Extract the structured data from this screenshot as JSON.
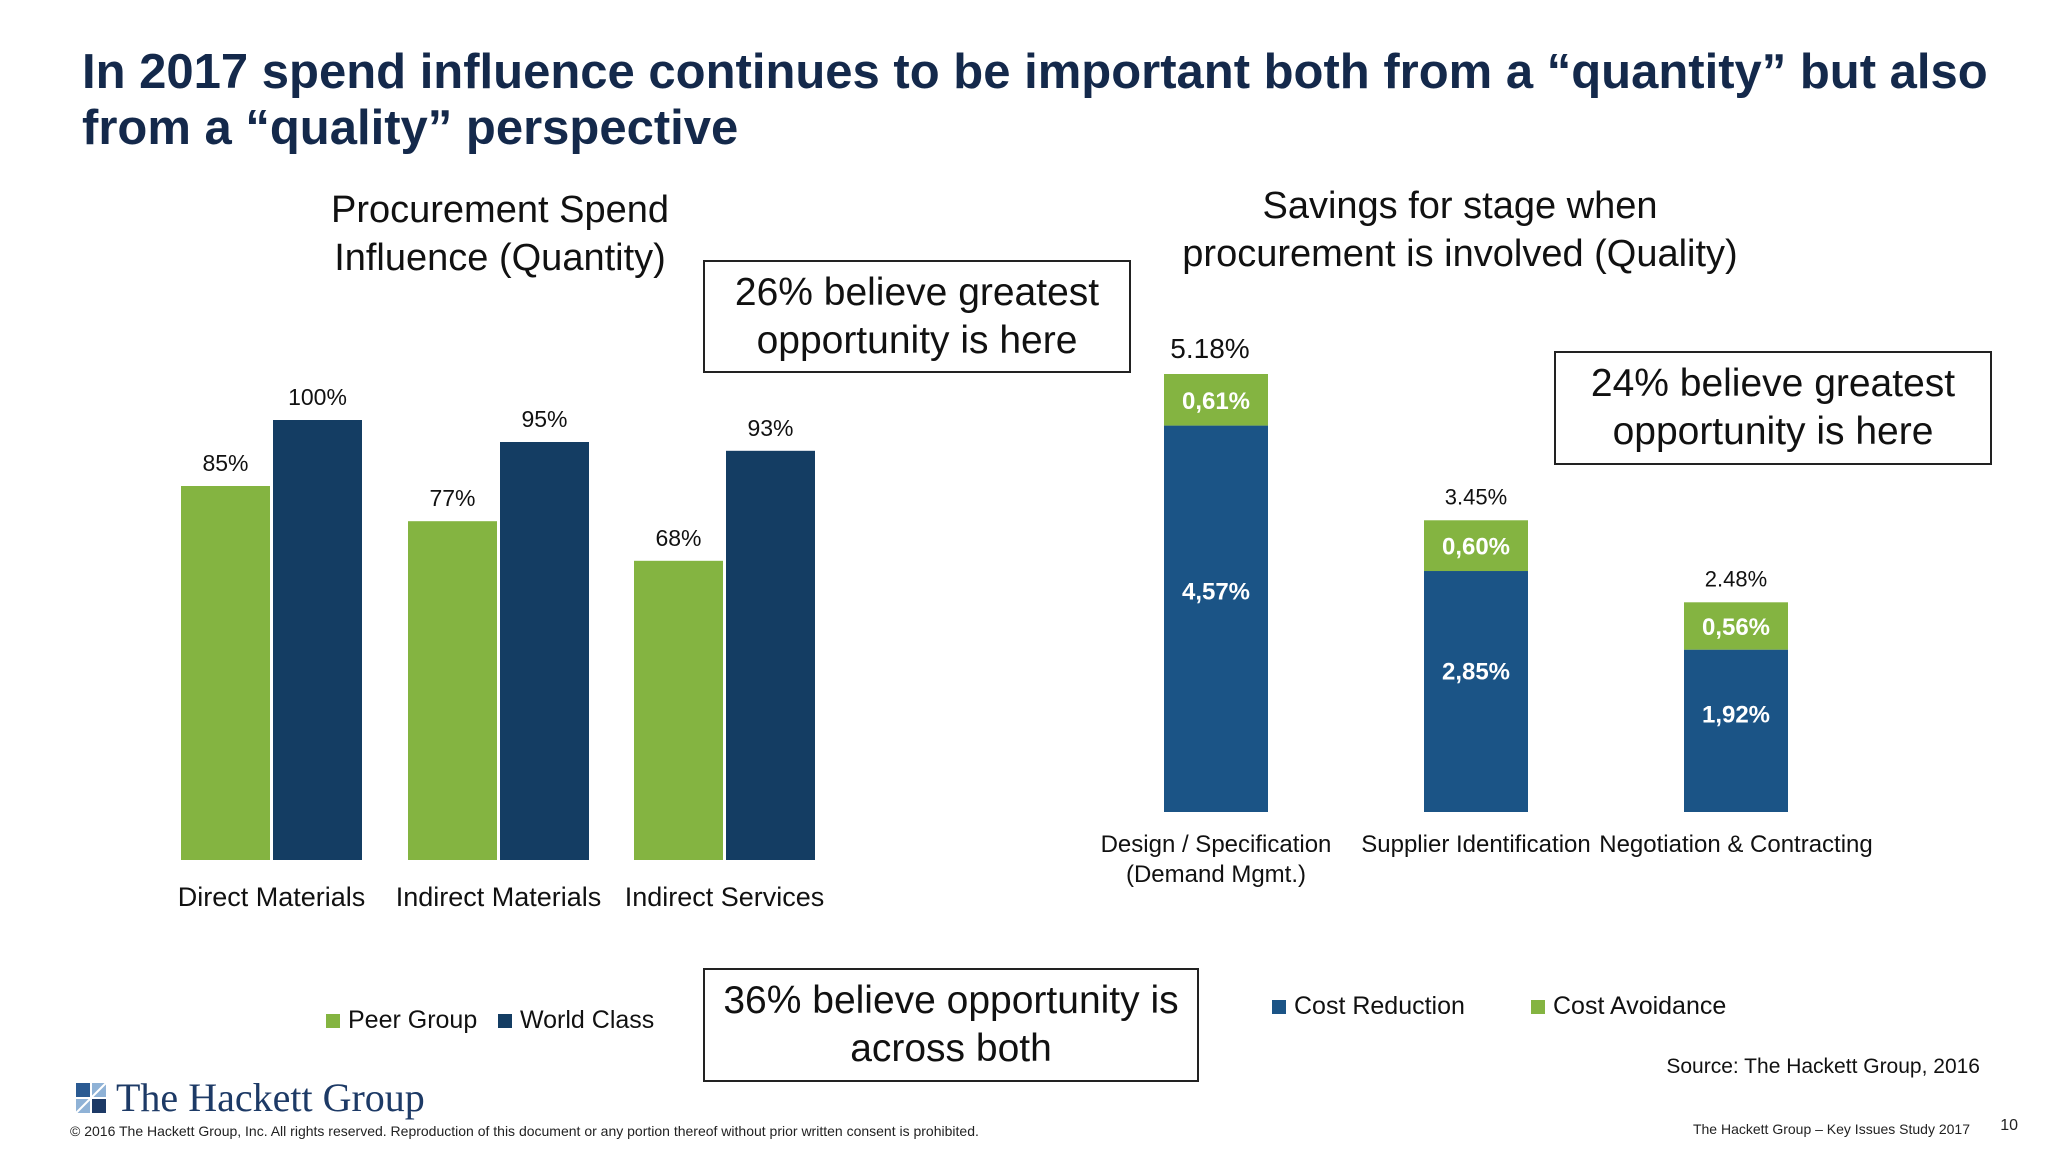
{
  "slide": {
    "title": "In 2017 spend influence continues to be important both from a “quantity” but also from a “quality” perspective",
    "footer_copyright": "© 2016 The Hackett Group, Inc. All rights reserved. Reproduction of this document or any portion thereof without prior written consent is prohibited.",
    "footer_study": "The Hackett Group – Key Issues Study 2017",
    "page_number": "10",
    "source": "Source: The Hackett Group, 2016",
    "logo_text": "The Hackett Group"
  },
  "callouts": {
    "left": "26% believe greatest opportunity is here",
    "right": "24% believe greatest opportunity is here",
    "bottom": "36% believe opportunity is across both"
  },
  "colors": {
    "green": "#84b441",
    "dark_navy": "#143d63",
    "blue": "#1b5486",
    "title": "#14294b"
  },
  "chart_data": [
    {
      "type": "bar",
      "title": "Procurement Spend Influence (Quantity)",
      "categories": [
        "Direct Materials",
        "Indirect Materials",
        "Indirect Services"
      ],
      "series": [
        {
          "name": "Peer Group",
          "values": [
            85,
            77,
            68
          ],
          "labels": [
            "85%",
            "77%",
            "68%"
          ]
        },
        {
          "name": "World Class",
          "values": [
            100,
            95,
            93
          ],
          "labels": [
            "100%",
            "95%",
            "93%"
          ]
        }
      ],
      "ylim": [
        0,
        100
      ],
      "grid": false,
      "legend": "bottom"
    },
    {
      "type": "bar",
      "stacked": true,
      "title": "Savings for stage when procurement is involved (Quality)",
      "categories": [
        "Design / Specification (Demand Mgmt.)",
        "Supplier Identification",
        "Negotiation & Contracting"
      ],
      "category_lines": [
        [
          "Design / Specification",
          "(Demand Mgmt.)"
        ],
        [
          "Supplier Identification"
        ],
        [
          "Negotiation & Contracting"
        ]
      ],
      "series": [
        {
          "name": "Cost Reduction",
          "values": [
            4.57,
            2.85,
            1.92
          ],
          "labels": [
            "4,57%",
            "2,85%",
            "1,92%"
          ]
        },
        {
          "name": "Cost Avoidance",
          "values": [
            0.61,
            0.6,
            0.56
          ],
          "labels": [
            "0,61%",
            "0,60%",
            "0,56%"
          ]
        }
      ],
      "totals": [
        "5.18%",
        "3.45%",
        "2.48%"
      ],
      "ylim": [
        0,
        5.18
      ],
      "grid": false,
      "legend": "bottom"
    }
  ]
}
